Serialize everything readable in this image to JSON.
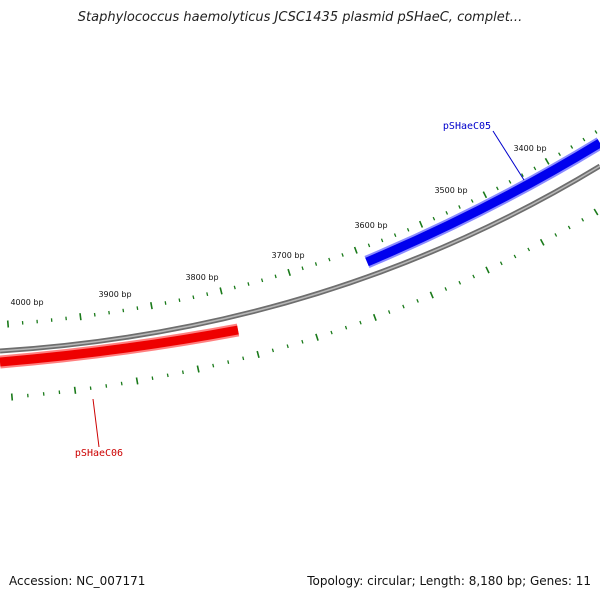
{
  "title": "Staphylococcus haemolyticus JCSC1435 plasmid pSHaeC, complet...",
  "footer": {
    "accession": "Accession: NC_007171",
    "topology": "Topology: circular; Length: 8,180 bp; Genes: 11"
  },
  "colors": {
    "backbone": "#808080",
    "forward_gene": "#0000ee",
    "reverse_gene": "#ee0000",
    "ticks": "#1a7a1a"
  },
  "genes": [
    {
      "name": "pSHaeC05",
      "strand": "forward",
      "color": "#0000cc"
    },
    {
      "name": "pSHaeC06",
      "strand": "reverse",
      "color": "#cc0000"
    }
  ],
  "tick_labels": [
    "3400 bp",
    "3500 bp",
    "3600 bp",
    "3700 bp",
    "3800 bp",
    "3900 bp",
    "4000 bp"
  ]
}
